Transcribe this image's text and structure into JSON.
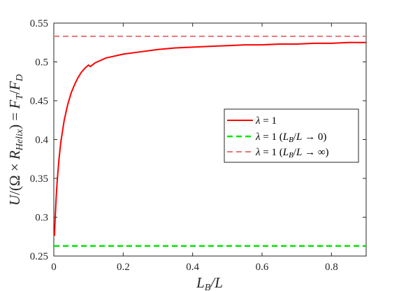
{
  "chart_data": {
    "type": "line",
    "xlabel": "L_B/L",
    "ylabel": "U/(Ω × R_Helix) = F_T/F_D",
    "xlim": [
      0,
      0.9
    ],
    "ylim": [
      0.25,
      0.55
    ],
    "x_ticks": [
      "0",
      "0.2",
      "0.4",
      "0.6",
      "0.8"
    ],
    "y_ticks": [
      "0.25",
      "0.3",
      "0.35",
      "0.4",
      "0.45",
      "0.5",
      "0.55"
    ],
    "grid": false,
    "legend_position": "center-right",
    "series": [
      {
        "name": "λ = 1",
        "style": "solid",
        "color": "#ff0000",
        "x": [
          0.002,
          0.004,
          0.007,
          0.01,
          0.015,
          0.02,
          0.03,
          0.04,
          0.05,
          0.06,
          0.07,
          0.08,
          0.09,
          0.1,
          0.105,
          0.12,
          0.15,
          0.2,
          0.25,
          0.3,
          0.35,
          0.4,
          0.45,
          0.5,
          0.55,
          0.6,
          0.65,
          0.7,
          0.75,
          0.8,
          0.85,
          0.9
        ],
        "y": [
          0.276,
          0.3,
          0.327,
          0.348,
          0.375,
          0.396,
          0.425,
          0.445,
          0.46,
          0.471,
          0.48,
          0.487,
          0.492,
          0.496,
          0.494,
          0.499,
          0.505,
          0.51,
          0.513,
          0.516,
          0.518,
          0.519,
          0.52,
          0.521,
          0.522,
          0.522,
          0.523,
          0.523,
          0.524,
          0.524,
          0.525,
          0.525
        ]
      },
      {
        "name": "λ = 1 (L_B/L → 0)",
        "style": "dashed",
        "color": "#00e600",
        "x": [
          0,
          0.9
        ],
        "y": [
          0.263,
          0.263
        ]
      },
      {
        "name": "λ = 1 (L_B/L → ∞)",
        "style": "dashed",
        "color": "#e87878",
        "x": [
          0,
          0.9
        ],
        "y": [
          0.533,
          0.533
        ]
      }
    ]
  }
}
